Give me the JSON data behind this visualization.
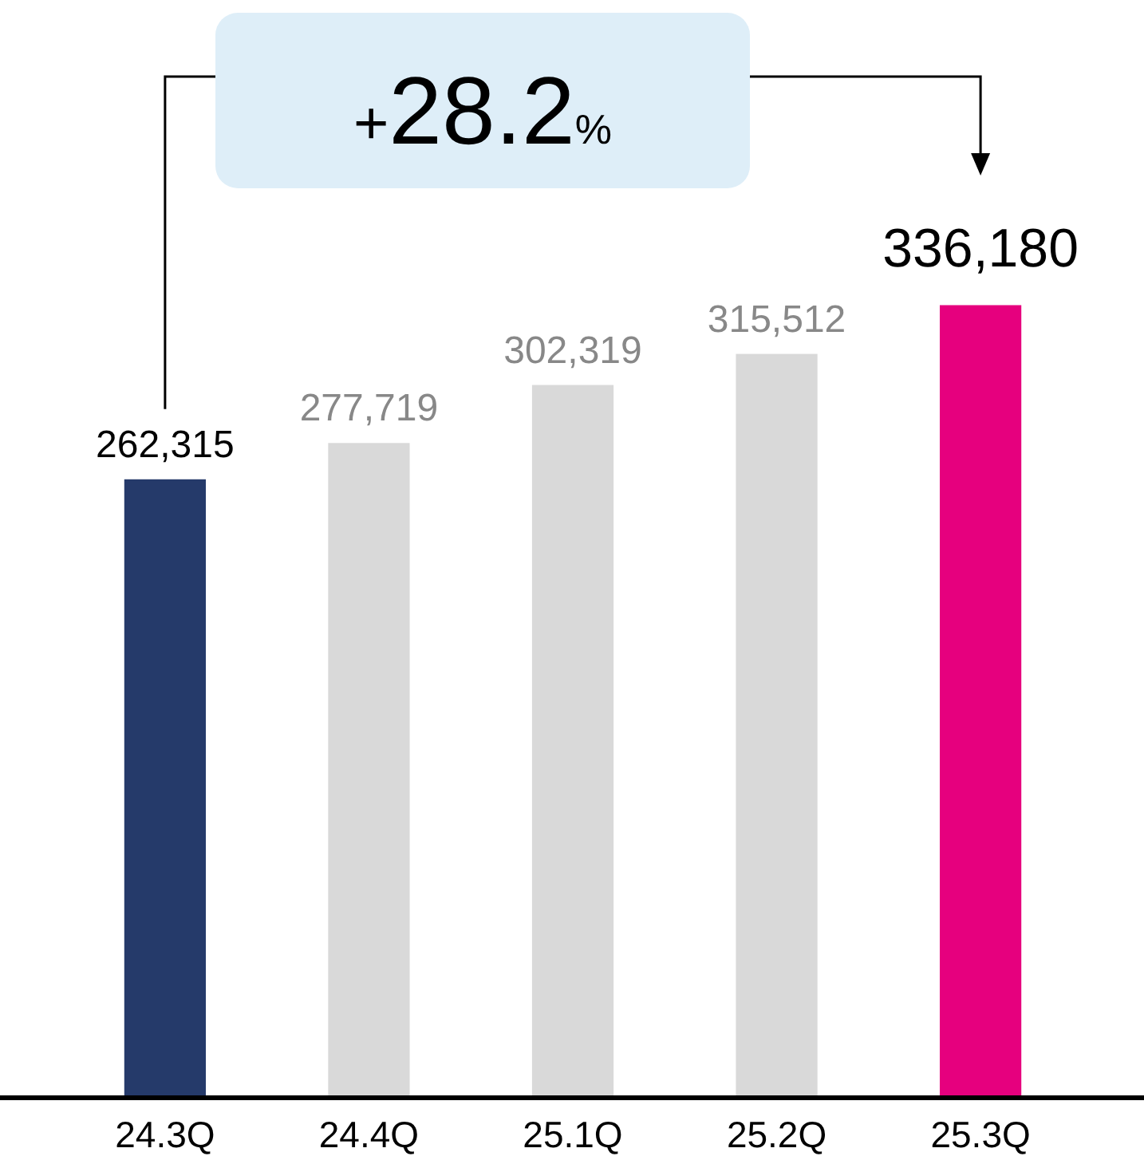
{
  "chart_data": {
    "type": "bar",
    "categories": [
      "24.3Q",
      "24.4Q",
      "25.1Q",
      "25.2Q",
      "25.3Q"
    ],
    "values": [
      262315,
      277719,
      302319,
      315512,
      336180
    ],
    "colors": [
      "#253a6a",
      "#d9d9d9",
      "#d9d9d9",
      "#d9d9d9",
      "#e6007e"
    ],
    "value_labels": [
      "262,315",
      "277,719",
      "302,319",
      "315,512",
      "336,180"
    ],
    "annotations": [
      "+28.2%"
    ]
  }
}
